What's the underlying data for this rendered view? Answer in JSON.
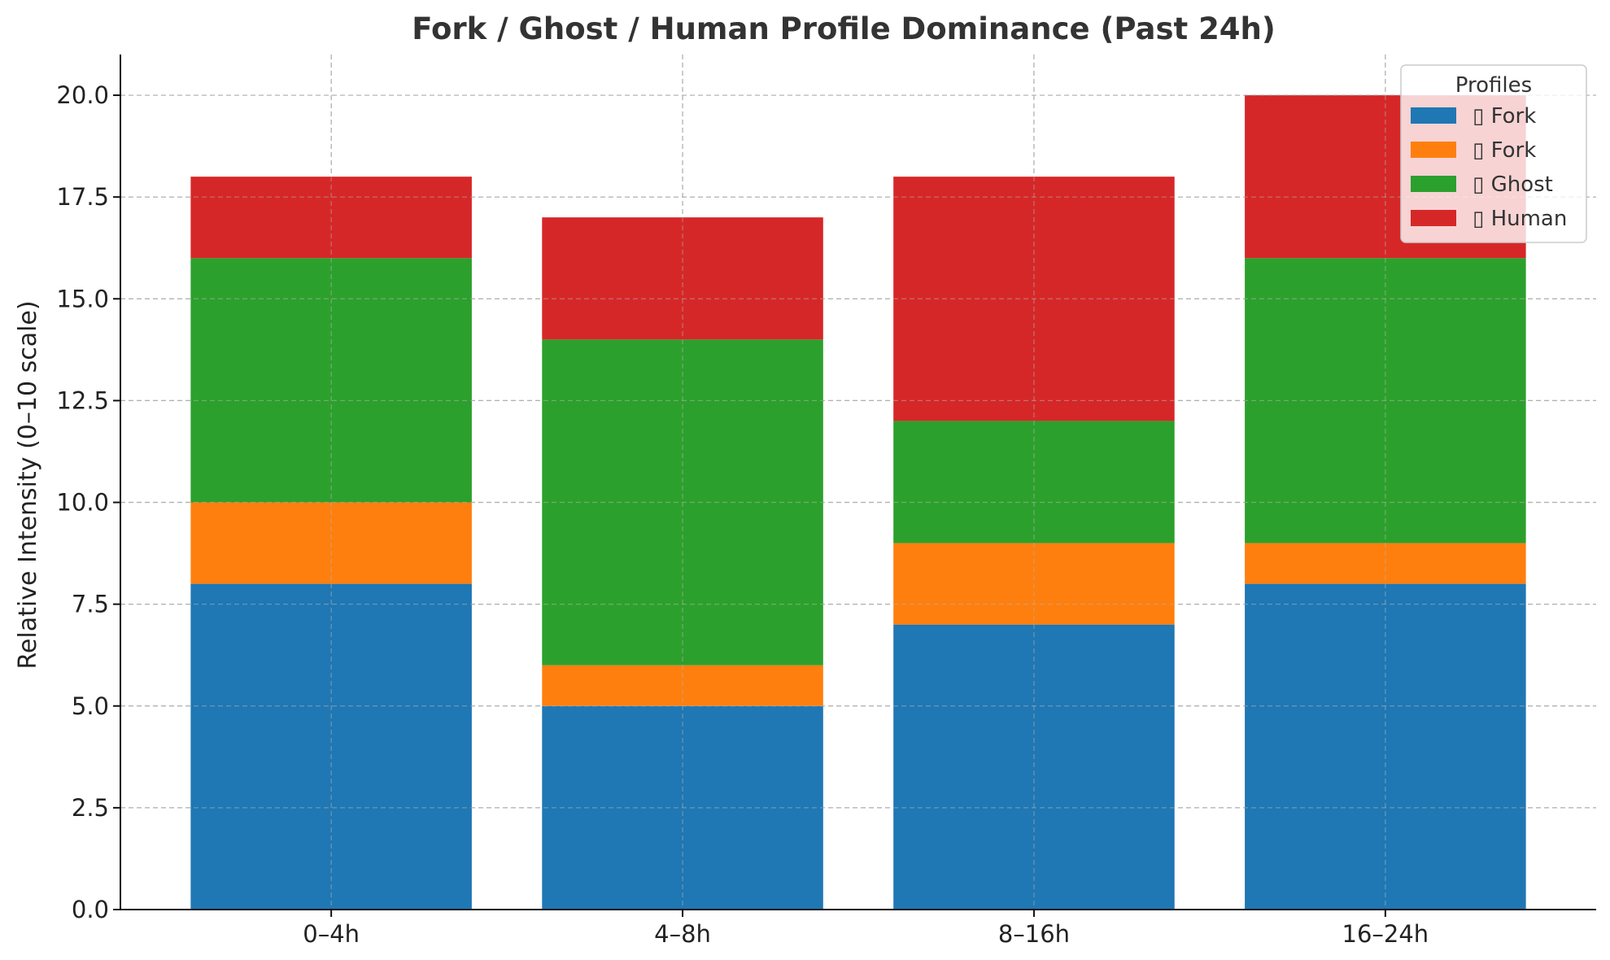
{
  "chart_data": {
    "type": "bar",
    "stacked": true,
    "title": "Fork / Ghost / Human Profile Dominance (Past 24h)",
    "xlabel": "",
    "ylabel": "Relative Intensity (0–10 scale)",
    "categories": [
      "0–4h",
      "4–8h",
      "8–16h",
      "16–24h"
    ],
    "ylim": [
      0,
      21
    ],
    "yticks": [
      0.0,
      2.5,
      5.0,
      7.5,
      10.0,
      12.5,
      15.0,
      17.5,
      20.0
    ],
    "ytick_labels": [
      "0.0",
      "2.5",
      "5.0",
      "7.5",
      "10.0",
      "12.5",
      "15.0",
      "17.5",
      "20.0"
    ],
    "grid": true,
    "legend": {
      "title": "Profiles",
      "placement": "top-right",
      "entries": [
        "▯ Fork",
        "▯ Fork",
        "▯ Ghost",
        "▯ Human"
      ]
    },
    "series": [
      {
        "name": "▯ Fork",
        "color": "#1f77b4",
        "values": [
          8,
          5,
          7,
          8
        ]
      },
      {
        "name": "▯ Fork",
        "color": "#ff7f0e",
        "values": [
          2,
          1,
          2,
          1
        ]
      },
      {
        "name": "▯ Ghost",
        "color": "#2ca02c",
        "values": [
          6,
          8,
          3,
          7
        ]
      },
      {
        "name": "▯ Human",
        "color": "#d62728",
        "values": [
          2,
          3,
          6,
          4
        ]
      }
    ]
  }
}
